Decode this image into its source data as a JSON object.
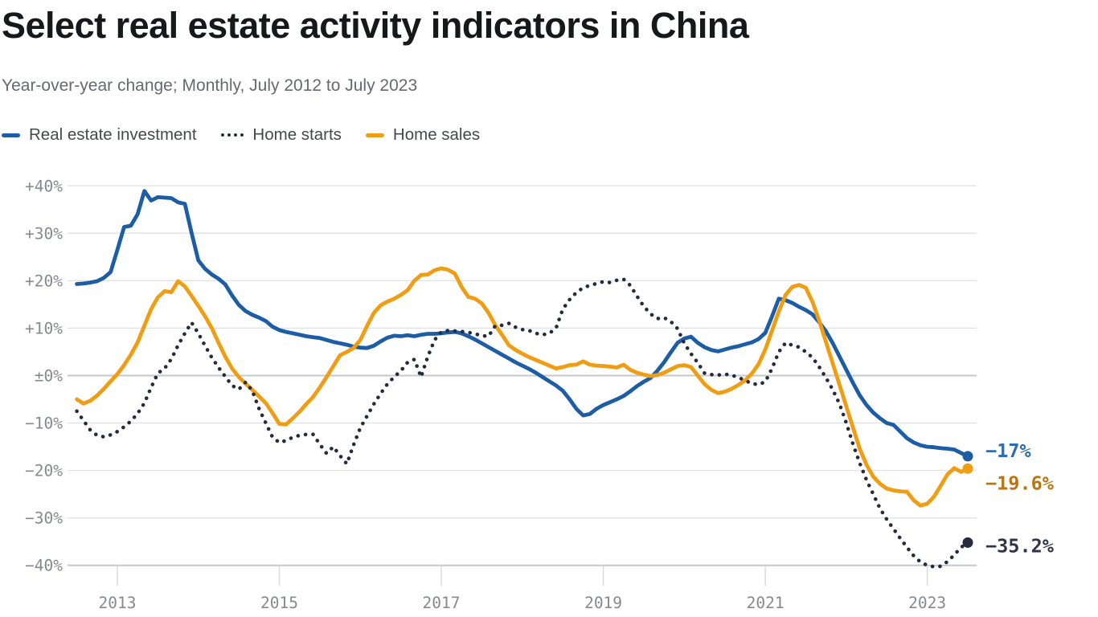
{
  "header": {
    "title": "Select real estate activity indicators in China",
    "subtitle": "Year-over-year change; Monthly, July 2012 to July 2023"
  },
  "legend": [
    {
      "label": "Real estate investment",
      "type": "solid",
      "color": "#1c5da5"
    },
    {
      "label": "Home starts",
      "type": "dotted",
      "color": "#262a40"
    },
    {
      "label": "Home sales",
      "type": "solid",
      "color": "#f19d13"
    }
  ],
  "chart_data": {
    "type": "line",
    "title": "Select real estate activity indicators in China",
    "subtitle": "Year-over-year change; Monthly, July 2012 to July 2023",
    "x_start": "2012-07",
    "x_end": "2023-07",
    "frequency": "monthly",
    "unit": "percent year-over-year",
    "x_tick_years": [
      "2013",
      "2015",
      "2017",
      "2019",
      "2021",
      "2023"
    ],
    "ylim": [
      -42,
      42
    ],
    "grid": "horizontal",
    "legend_position": "top",
    "y_ticks": [
      {
        "value": 40,
        "label": "+40%"
      },
      {
        "value": 30,
        "label": "+30%"
      },
      {
        "value": 20,
        "label": "+20%"
      },
      {
        "value": 10,
        "label": "+10%"
      },
      {
        "value": 0,
        "label": "±0%"
      },
      {
        "value": -10,
        "label": "−10%"
      },
      {
        "value": -20,
        "label": "−20%"
      },
      {
        "value": -30,
        "label": "−30%"
      },
      {
        "value": -40,
        "label": "−40%"
      }
    ],
    "series": [
      {
        "name": "Real estate investment",
        "style": "solid",
        "color": "#1c5da5",
        "end_label": "−17%",
        "end_label_color": "#2f6cb3",
        "values": [
          19.3,
          19.4,
          19.6,
          19.9,
          20.6,
          21.8,
          26.5,
          31.3,
          31.6,
          34.0,
          38.9,
          36.9,
          37.6,
          37.5,
          37.4,
          36.5,
          36.2,
          30.1,
          24.3,
          22.5,
          21.3,
          20.4,
          19.2,
          16.9,
          14.9,
          13.6,
          12.8,
          12.2,
          11.5,
          10.3,
          9.6,
          9.2,
          8.9,
          8.6,
          8.3,
          8.1,
          7.9,
          7.5,
          7.1,
          6.8,
          6.5,
          6.1,
          5.9,
          5.8,
          6.3,
          7.2,
          8.0,
          8.4,
          8.3,
          8.5,
          8.3,
          8.6,
          8.8,
          8.8,
          8.9,
          9.1,
          9.2,
          8.9,
          8.3,
          7.6,
          6.8,
          6.0,
          5.2,
          4.4,
          3.6,
          2.8,
          2.1,
          1.4,
          0.6,
          -0.3,
          -1.2,
          -2.1,
          -3.2,
          -5.0,
          -7.0,
          -8.4,
          -8.1,
          -7.0,
          -6.2,
          -5.6,
          -5.0,
          -4.3,
          -3.3,
          -2.2,
          -1.3,
          -0.5,
          1.0,
          2.8,
          4.9,
          6.9,
          7.8,
          8.2,
          6.9,
          6.0,
          5.4,
          5.1,
          5.5,
          5.9,
          6.2,
          6.6,
          7.0,
          7.7,
          9.0,
          12.5,
          16.2,
          15.9,
          15.3,
          14.5,
          13.8,
          12.9,
          11.2,
          9.3,
          6.8,
          4.0,
          1.2,
          -1.6,
          -4.2,
          -6.2,
          -7.8,
          -9.0,
          -10.0,
          -10.4,
          -11.8,
          -13.2,
          -14.1,
          -14.7,
          -15.0,
          -15.1,
          -15.3,
          -15.4,
          -15.6,
          -16.3,
          -17.0
        ]
      },
      {
        "name": "Home sales",
        "style": "solid",
        "color": "#f19d13",
        "end_label": "−19.6%",
        "end_label_color": "#bb7410",
        "values": [
          -5.0,
          -5.9,
          -5.3,
          -4.2,
          -2.8,
          -1.2,
          0.3,
          2.2,
          4.4,
          7.0,
          10.5,
          14.0,
          16.5,
          17.8,
          17.6,
          19.9,
          18.8,
          16.8,
          14.7,
          12.5,
          10.0,
          6.9,
          4.0,
          1.5,
          -0.3,
          -1.7,
          -3.0,
          -4.4,
          -5.8,
          -7.9,
          -10.2,
          -10.3,
          -9.0,
          -7.6,
          -6.0,
          -4.5,
          -2.5,
          -0.3,
          2.0,
          4.3,
          5.0,
          5.8,
          7.5,
          10.5,
          13.2,
          14.8,
          15.6,
          16.2,
          17.0,
          18.0,
          20.0,
          21.2,
          21.3,
          22.2,
          22.6,
          22.3,
          21.5,
          18.7,
          16.6,
          16.2,
          15.2,
          13.2,
          10.6,
          8.6,
          6.4,
          5.4,
          4.6,
          3.9,
          3.3,
          2.7,
          2.1,
          1.5,
          1.8,
          2.2,
          2.3,
          3.0,
          2.3,
          2.1,
          2.0,
          1.9,
          1.7,
          2.3,
          1.2,
          0.6,
          0.2,
          -0.1,
          0.1,
          0.6,
          1.3,
          2.0,
          2.2,
          1.8,
          0.0,
          -1.8,
          -3.0,
          -3.7,
          -3.4,
          -2.8,
          -2.0,
          -1.0,
          0.4,
          2.4,
          5.5,
          9.5,
          13.5,
          17.0,
          18.7,
          19.1,
          18.5,
          15.5,
          11.5,
          7.0,
          2.5,
          -2.0,
          -6.5,
          -11.0,
          -15.5,
          -18.8,
          -21.3,
          -22.8,
          -23.8,
          -24.2,
          -24.4,
          -24.5,
          -26.3,
          -27.4,
          -27.0,
          -25.5,
          -23.2,
          -20.8,
          -19.5,
          -20.3,
          -19.6
        ]
      },
      {
        "name": "Home starts",
        "style": "dotted",
        "color": "#262a40",
        "end_label": "−35.2%",
        "end_label_color": "#323349",
        "values": [
          -7.5,
          -9.5,
          -11.5,
          -12.6,
          -12.9,
          -12.5,
          -11.8,
          -10.8,
          -9.6,
          -8.0,
          -5.8,
          -2.5,
          0.5,
          1.5,
          3.5,
          6.4,
          8.9,
          11.2,
          8.9,
          6.3,
          3.8,
          1.7,
          -0.2,
          -2.1,
          -2.9,
          -1.4,
          -3.2,
          -7.0,
          -10.0,
          -13.0,
          -14.1,
          -13.7,
          -13.0,
          -12.6,
          -12.4,
          -12.4,
          -14.5,
          -16.4,
          -15.0,
          -16.9,
          -18.6,
          -14.6,
          -11.0,
          -8.5,
          -6.0,
          -3.8,
          -1.8,
          -0.3,
          1.0,
          2.8,
          3.4,
          -0.3,
          4.0,
          7.5,
          9.2,
          9.5,
          9.4,
          9.3,
          9.1,
          8.8,
          8.4,
          8.3,
          10.5,
          10.6,
          11.0,
          10.2,
          9.7,
          9.5,
          8.9,
          8.6,
          8.9,
          10.0,
          14.0,
          16.0,
          17.5,
          18.5,
          19.0,
          19.4,
          19.8,
          19.6,
          20.1,
          20.3,
          19.0,
          16.7,
          14.6,
          13.0,
          12.0,
          12.2,
          11.4,
          9.9,
          6.8,
          4.6,
          2.7,
          0.5,
          0.2,
          0.1,
          0.3,
          0.1,
          -0.4,
          -1.0,
          -1.7,
          -1.9,
          -1.3,
          1.5,
          5.0,
          6.9,
          6.4,
          6.0,
          5.0,
          3.8,
          1.8,
          -0.5,
          -3.0,
          -6.0,
          -10.0,
          -14.5,
          -18.5,
          -22.0,
          -25.0,
          -28.0,
          -30.3,
          -32.3,
          -34.3,
          -36.2,
          -38.0,
          -39.3,
          -40.0,
          -40.3,
          -40.2,
          -39.2,
          -37.8,
          -36.2,
          -35.2
        ]
      }
    ]
  }
}
